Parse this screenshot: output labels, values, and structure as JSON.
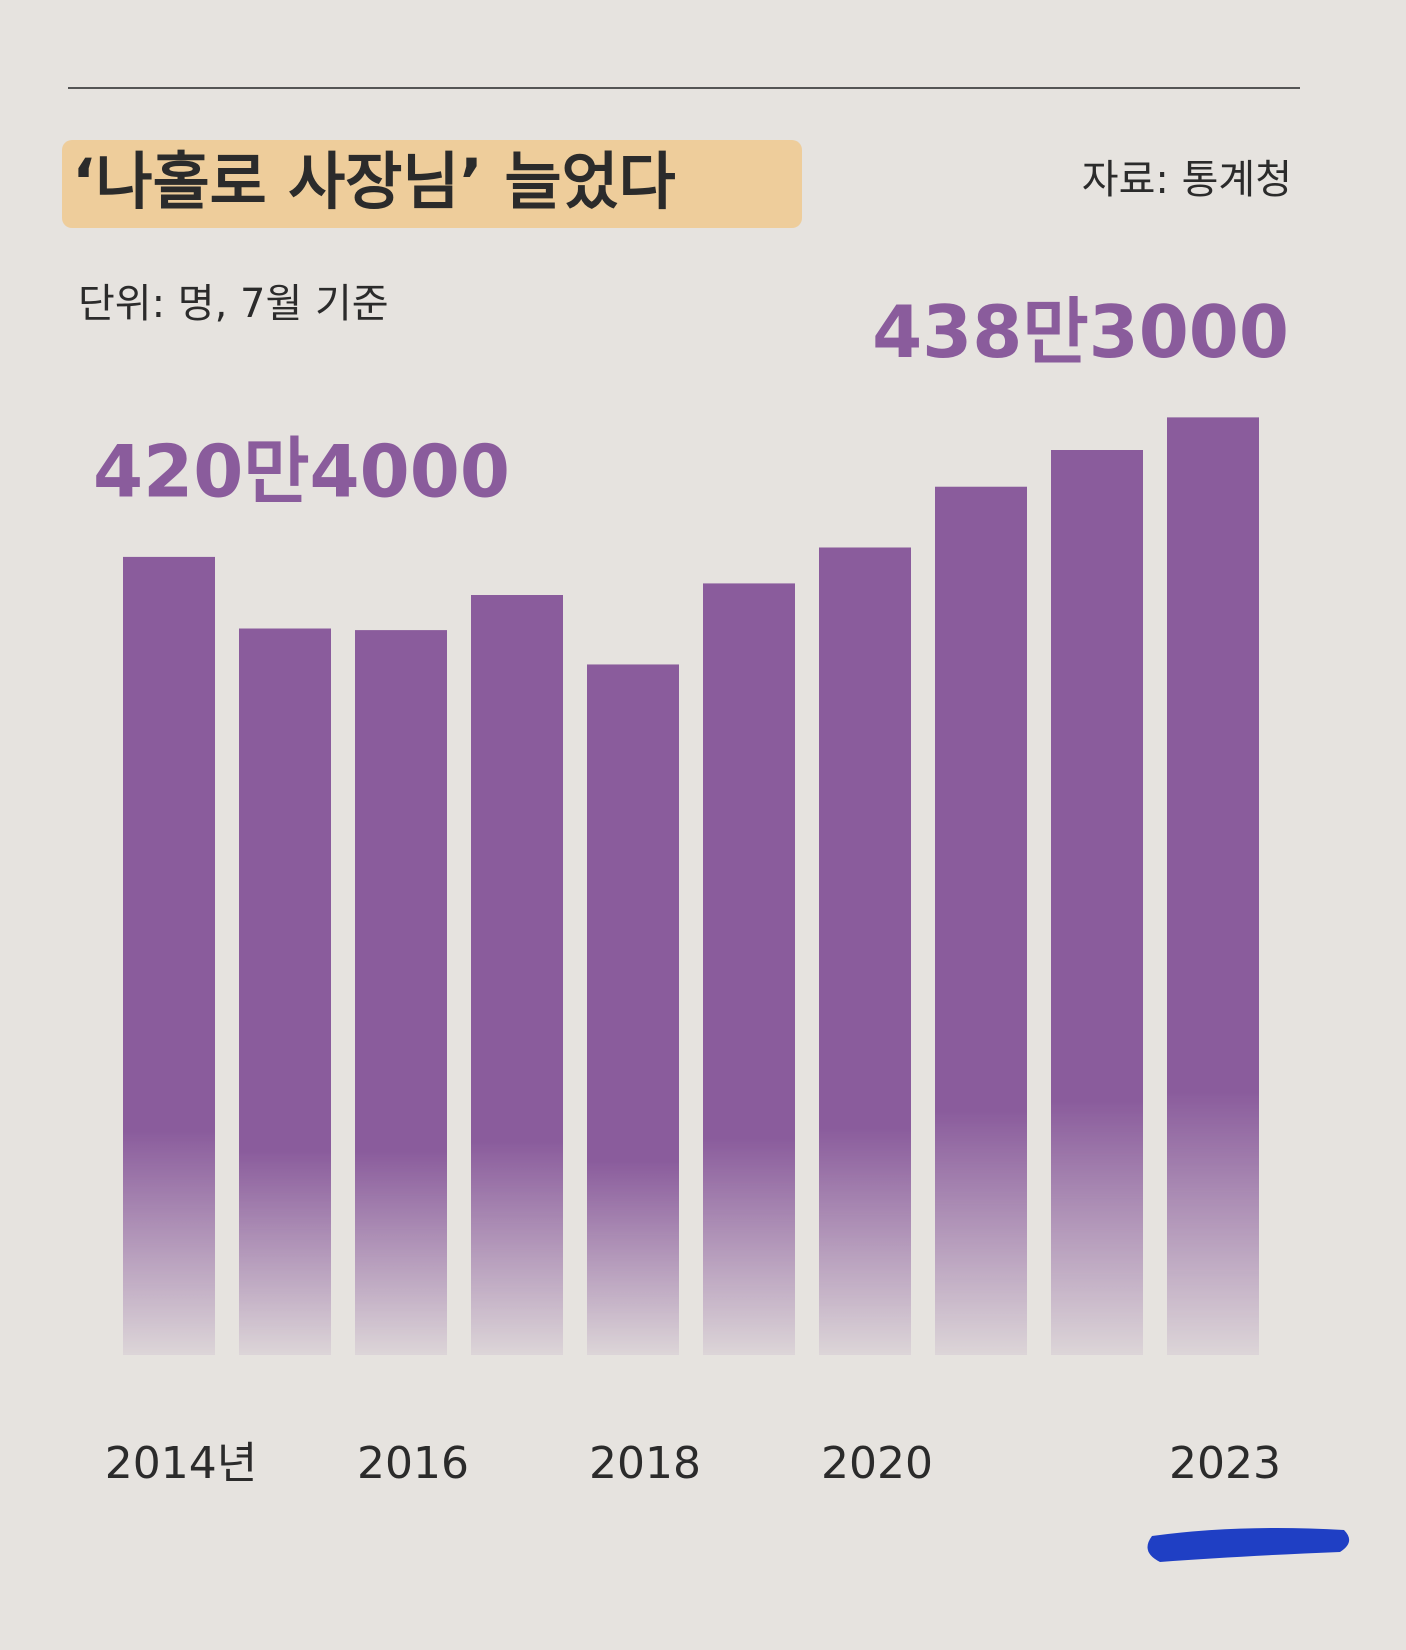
{
  "chart_data": {
    "type": "bar",
    "title": "‘나홀로 사장님’ 늘었다",
    "source": "자료: 통계청",
    "subtitle": "단위: 명, 7월 기준",
    "categories": [
      "2014년",
      null,
      "2016",
      null,
      "2018",
      null,
      "2020",
      null,
      null,
      "2023"
    ],
    "values": [
      4204000,
      4112000,
      4110000,
      4155000,
      4066000,
      4170000,
      4216000,
      4294000,
      4341000,
      4383000
    ],
    "value_labels": [
      "420만4000",
      null,
      null,
      null,
      null,
      null,
      null,
      null,
      null,
      "438만3000"
    ],
    "color": "#8a5c9c",
    "ylim": [
      3180000,
      4400000
    ]
  }
}
